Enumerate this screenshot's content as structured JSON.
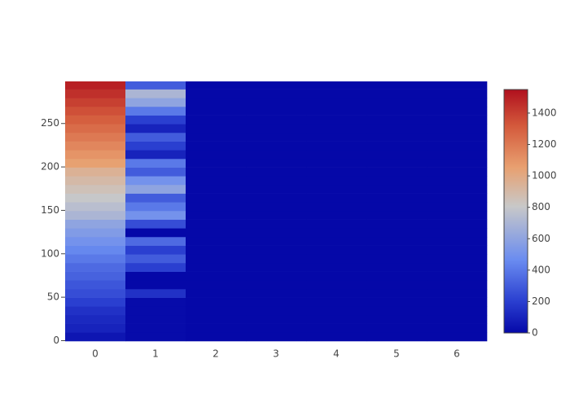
{
  "chart_data": {
    "type": "heatmap",
    "x": [
      0,
      1,
      2,
      3,
      4,
      5,
      6
    ],
    "ybins": [
      -0.5,
      9.5,
      19.5,
      29.5,
      39.5,
      49.5,
      59.5,
      69.5,
      79.5,
      89.5,
      99.5,
      109.5,
      119.5,
      129.5,
      139.5,
      149.5,
      159.5,
      169.5,
      179.5,
      189.5,
      199.5,
      209.5,
      219.5,
      229.5,
      239.5,
      249.5,
      259.5,
      269.5,
      279.5,
      289.5,
      298.5
    ],
    "z": [
      [
        50,
        10,
        0,
        0,
        0,
        0,
        0
      ],
      [
        100,
        10,
        0,
        0,
        0,
        0,
        0
      ],
      [
        120,
        10,
        0,
        0,
        0,
        0,
        0
      ],
      [
        150,
        10,
        0,
        0,
        0,
        0,
        0
      ],
      [
        200,
        10,
        0,
        0,
        0,
        0,
        0
      ],
      [
        250,
        150,
        0,
        0,
        0,
        0,
        0
      ],
      [
        280,
        0,
        0,
        0,
        0,
        0,
        0
      ],
      [
        320,
        0,
        0,
        0,
        0,
        0,
        0
      ],
      [
        350,
        200,
        0,
        0,
        0,
        0,
        0
      ],
      [
        400,
        300,
        0,
        0,
        0,
        0,
        0
      ],
      [
        450,
        200,
        0,
        0,
        0,
        0,
        0
      ],
      [
        500,
        350,
        0,
        0,
        0,
        0,
        0
      ],
      [
        550,
        0,
        0,
        0,
        0,
        0,
        0
      ],
      [
        600,
        250,
        0,
        0,
        0,
        0,
        0
      ],
      [
        700,
        500,
        0,
        0,
        0,
        0,
        0
      ],
      [
        750,
        400,
        0,
        0,
        0,
        0,
        0
      ],
      [
        800,
        300,
        0,
        0,
        0,
        0,
        0
      ],
      [
        850,
        600,
        0,
        0,
        0,
        0,
        0
      ],
      [
        900,
        500,
        0,
        0,
        0,
        0,
        0
      ],
      [
        950,
        300,
        0,
        0,
        0,
        0,
        0
      ],
      [
        1050,
        400,
        0,
        0,
        0,
        0,
        0
      ],
      [
        1100,
        100,
        0,
        0,
        0,
        0,
        0
      ],
      [
        1150,
        200,
        0,
        0,
        0,
        0,
        0
      ],
      [
        1200,
        300,
        0,
        0,
        0,
        0,
        0
      ],
      [
        1250,
        100,
        0,
        0,
        0,
        0,
        0
      ],
      [
        1300,
        200,
        0,
        0,
        0,
        0,
        0
      ],
      [
        1350,
        400,
        0,
        0,
        0,
        0,
        0
      ],
      [
        1400,
        600,
        0,
        0,
        0,
        0,
        0
      ],
      [
        1450,
        700,
        0,
        0,
        0,
        0,
        0
      ],
      [
        1500,
        300,
        0,
        0,
        0,
        0,
        0
      ]
    ],
    "xlim": [
      -0.5,
      6.5
    ],
    "xticks": [
      0,
      1,
      2,
      3,
      4,
      5,
      6
    ],
    "ylim": [
      -0.5,
      298.5
    ],
    "yticks": [
      0,
      50,
      100,
      150,
      200,
      250
    ],
    "zlim": [
      0,
      1550
    ],
    "zticks": [
      0,
      200,
      400,
      600,
      800,
      1000,
      1200,
      1400
    ],
    "colorscale": [
      [
        0,
        "#0508a8"
      ],
      [
        0.13,
        "#2a3fd0"
      ],
      [
        0.3,
        "#6a8cf0"
      ],
      [
        0.52,
        "#c8c8c8"
      ],
      [
        0.68,
        "#e8a070"
      ],
      [
        0.85,
        "#d45a3c"
      ],
      [
        1,
        "#b0101e"
      ]
    ]
  }
}
